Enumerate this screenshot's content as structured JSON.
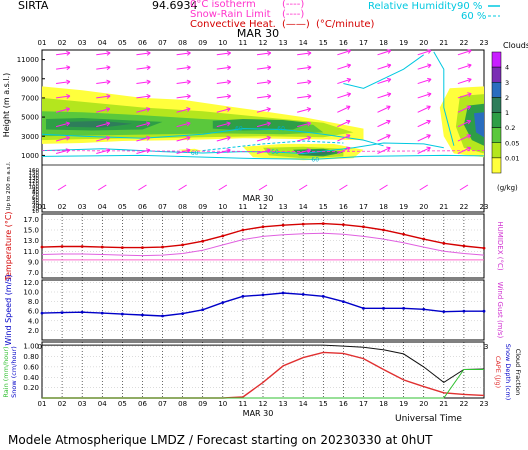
{
  "header": {
    "site": "SIRTA",
    "coords": "94.6934",
    "legend": [
      {
        "label": "0°C isotherm",
        "color": "#ff33cc",
        "symbol": "(----)"
      },
      {
        "label": "Snow-Rain Limit",
        "color": "#ff33cc",
        "symbol": "(----)"
      },
      {
        "label": "Convective Heat.",
        "color": "#d40000",
        "symbol": "(——)",
        "unit": "(°C/minute)"
      }
    ],
    "humidity": {
      "label": "Relative Humidity",
      "v1": "90 %",
      "v2": "60 %",
      "color": "#00c8e0"
    }
  },
  "date_label": "MAR 30",
  "hours": [
    "01",
    "02",
    "03",
    "04",
    "05",
    "06",
    "07",
    "08",
    "09",
    "10",
    "11",
    "12",
    "13",
    "14",
    "15",
    "16",
    "17",
    "18",
    "19",
    "20",
    "21",
    "22",
    "23"
  ],
  "footer": {
    "title": "Modele Atmospherique LMDZ / Forecast starting on 20230330 at 0hUT",
    "universal_time": "Universal Time"
  },
  "clouds_scale": {
    "title": "Clouds",
    "unit": "(g/kg)",
    "levels": [
      "0.01",
      "0.05",
      "0.2",
      "1",
      "2",
      "3",
      "4"
    ],
    "colors": [
      "#ffff3c",
      "#b4e61e",
      "#5ac83c",
      "#2e9e46",
      "#2e7d5a",
      "#2a6dbf",
      "#7a2eb4",
      "#c81eff"
    ]
  },
  "chart_data": [
    {
      "type": "heatmap",
      "name": "clouds",
      "ylabel": "Height (m a.s.l.)",
      "ylabel2": "Up to 200 m a.s.l.",
      "yticks_upper": [
        "11000",
        "9000",
        "7000",
        "5000",
        "3000",
        "1000"
      ],
      "yticks_lower": [
        "160",
        "150",
        "140",
        "130",
        "120",
        "110",
        "100",
        "90",
        "80",
        "70",
        "60",
        "50",
        "40",
        "30",
        "20",
        "10"
      ],
      "contour_labels": [
        {
          "text": "60",
          "x": 10.8,
          "h": 3800
        },
        {
          "text": "60",
          "x": 12.9,
          "h": 3800
        },
        {
          "text": "60",
          "x": 8.6,
          "h": 1250
        },
        {
          "text": "50",
          "x": 12.6,
          "h": 1350
        },
        {
          "text": "60",
          "x": 14.6,
          "h": 600
        }
      ]
    },
    {
      "type": "line",
      "name": "temperature",
      "ylabel": "Temperature (°C)",
      "ylabel_right": "HUMIDEX (°C)",
      "yticks": [
        "7.0",
        "9.0",
        "11.0",
        "13.0",
        "15.0",
        "17.0"
      ],
      "ylim": [
        6.0,
        18.0
      ],
      "x": [
        1,
        2,
        3,
        4,
        5,
        6,
        7,
        8,
        9,
        10,
        11,
        12,
        13,
        14,
        15,
        16,
        17,
        18,
        19,
        20,
        21,
        22,
        23
      ],
      "series": [
        {
          "color": "#d40000",
          "values": [
            11.8,
            11.9,
            11.9,
            11.8,
            11.7,
            11.7,
            11.8,
            12.2,
            12.9,
            13.9,
            15.0,
            15.6,
            15.9,
            16.1,
            16.2,
            16.0,
            15.6,
            15.0,
            14.2,
            13.3,
            12.5,
            12.0,
            11.6
          ]
        },
        {
          "color": "#e060e0",
          "values": [
            10.4,
            10.5,
            10.5,
            10.4,
            10.3,
            10.2,
            10.3,
            10.6,
            11.2,
            12.2,
            13.2,
            13.8,
            14.1,
            14.3,
            14.4,
            14.2,
            13.8,
            13.3,
            12.6,
            11.8,
            11.0,
            10.6,
            10.3
          ]
        },
        {
          "color": "#ff66cc",
          "values": [
            9.4,
            9.4,
            9.4,
            9.4,
            9.4,
            9.4,
            9.4,
            9.4,
            9.4,
            9.4,
            9.4,
            9.4,
            9.4,
            9.4,
            9.4,
            9.4,
            9.4,
            9.4,
            9.4,
            9.4,
            9.4,
            9.4,
            9.4
          ]
        }
      ]
    },
    {
      "type": "line",
      "name": "wind",
      "ylabel": "Wind Speed (m/s)",
      "ylabel_right": "Wind Gust (m/s)",
      "yticks": [
        "2.0",
        "4.0",
        "6.0",
        "8.0",
        "10.0",
        "12.0"
      ],
      "ylim": [
        0.0,
        12.5
      ],
      "x": [
        1,
        2,
        3,
        4,
        5,
        6,
        7,
        8,
        9,
        10,
        11,
        12,
        13,
        14,
        15,
        16,
        17,
        18,
        19,
        20,
        21,
        22,
        23
      ],
      "series": [
        {
          "color": "#0000c8",
          "values": [
            5.6,
            5.7,
            5.8,
            5.6,
            5.4,
            5.2,
            5.0,
            5.5,
            6.3,
            7.8,
            9.1,
            9.4,
            9.8,
            9.5,
            9.1,
            8.0,
            6.6,
            6.6,
            6.6,
            6.4,
            5.9,
            6.0,
            6.0
          ]
        }
      ]
    },
    {
      "type": "line",
      "name": "precipitation",
      "ylabel_left": "Rain (mm/hour)",
      "ylabel_left2": "Snow (cm/hour)",
      "ylabel_right": "CAPE (J/g)",
      "ylabel_right2": "Snow Depth (cm)",
      "ylabel_right3": "Cloud Fraction",
      "yticks": [
        "0.20",
        "0.40",
        "0.60",
        "0.80",
        "1.00"
      ],
      "ylim": [
        0.0,
        1.08
      ],
      "x": [
        1,
        2,
        3,
        4,
        5,
        6,
        7,
        8,
        9,
        10,
        11,
        12,
        13,
        14,
        15,
        16,
        17,
        18,
        19,
        20,
        21,
        22,
        23
      ],
      "series": [
        {
          "color": "#e03030",
          "values": [
            0,
            0,
            0,
            0,
            0,
            0,
            0,
            0,
            0,
            0,
            0.02,
            0.3,
            0.62,
            0.78,
            0.88,
            0.86,
            0.76,
            0.55,
            0.35,
            0.22,
            0.1,
            0.07,
            0.05
          ]
        },
        {
          "color": "#111111",
          "values": [
            1.02,
            1.02,
            1.02,
            1.02,
            1.02,
            1.02,
            1.02,
            1.02,
            1.02,
            1.02,
            1.02,
            1.02,
            1.02,
            1.02,
            1.02,
            1.0,
            0.98,
            0.93,
            0.85,
            0.6,
            0.3,
            0.55,
            0.56
          ]
        },
        {
          "color": "#30c030",
          "values": [
            0,
            0,
            0,
            0,
            0,
            0,
            0,
            0,
            0,
            0,
            0,
            0,
            0,
            0,
            0,
            0,
            0,
            0,
            0,
            0,
            0,
            0.55,
            0.55
          ]
        }
      ]
    }
  ]
}
